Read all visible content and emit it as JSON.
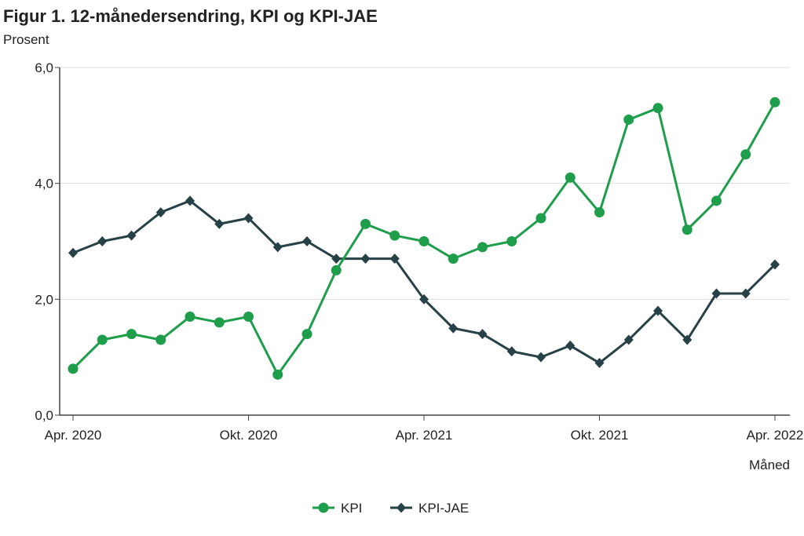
{
  "chart_data": {
    "type": "line",
    "title": "Figur 1. 12-månedersendring, KPI og KPI-JAE",
    "ylabel": "Prosent",
    "xlabel": "Måned",
    "ylim": [
      0,
      6
    ],
    "yticks": [
      0,
      2,
      4,
      6
    ],
    "ytick_labels": [
      "0,0",
      "2,0",
      "4,0",
      "6,0"
    ],
    "xtick_labels": [
      {
        "index": 0,
        "label": "Apr. 2020"
      },
      {
        "index": 6,
        "label": "Okt. 2020"
      },
      {
        "index": 12,
        "label": "Apr. 2021"
      },
      {
        "index": 18,
        "label": "Okt. 2021"
      },
      {
        "index": 24,
        "label": "Apr. 2022"
      }
    ],
    "grid": true,
    "legend_position": "bottom",
    "series": [
      {
        "name": "KPI",
        "color": "#1e9d4b",
        "marker": "circle",
        "values": [
          0.8,
          1.3,
          1.4,
          1.3,
          1.7,
          1.6,
          1.7,
          0.7,
          1.4,
          2.5,
          3.3,
          3.1,
          3.0,
          2.7,
          2.9,
          3.0,
          3.4,
          4.1,
          3.5,
          5.1,
          5.3,
          3.2,
          3.7,
          4.5,
          5.4
        ]
      },
      {
        "name": "KPI-JAE",
        "color": "#274247",
        "marker": "diamond",
        "values": [
          2.8,
          3.0,
          3.1,
          3.5,
          3.7,
          3.3,
          3.4,
          2.9,
          3.0,
          2.7,
          2.7,
          2.7,
          2.0,
          1.5,
          1.4,
          1.1,
          1.0,
          1.2,
          0.9,
          1.3,
          1.8,
          1.3,
          2.1,
          2.1,
          2.6
        ]
      }
    ]
  }
}
